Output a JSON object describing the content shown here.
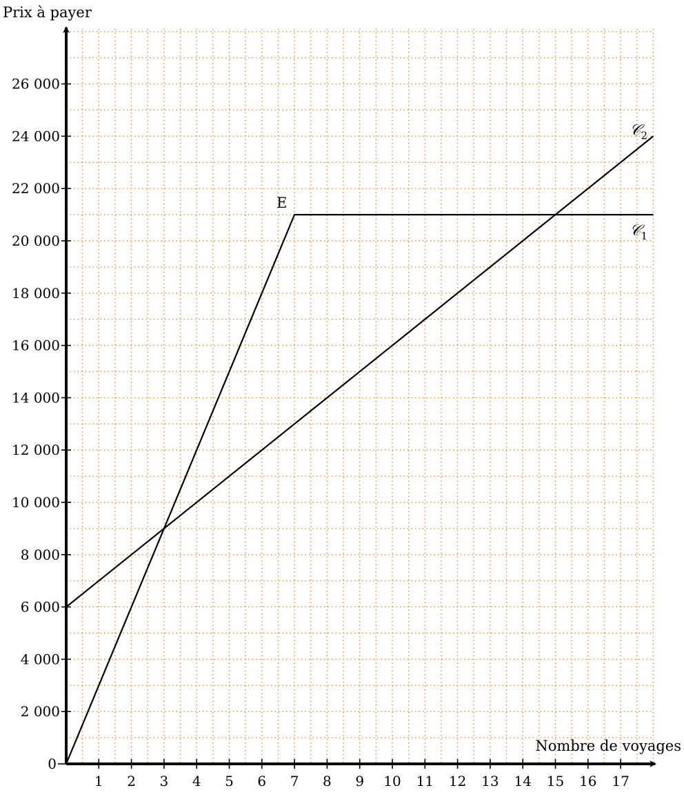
{
  "chart_data": {
    "type": "line",
    "xlabel": "Nombre de voyages",
    "ylabel": "Prix à payer",
    "xlim": [
      0,
      18
    ],
    "ylim": [
      0,
      28000
    ],
    "x_ticks": [
      1,
      2,
      3,
      4,
      5,
      6,
      7,
      8,
      9,
      10,
      11,
      12,
      13,
      14,
      15,
      16,
      17
    ],
    "x_tick_labels": [
      "1",
      "2",
      "3",
      "4",
      "5",
      "6",
      "7",
      "8",
      "9",
      "10",
      "11",
      "12",
      "13",
      "14",
      "15",
      "16",
      "17"
    ],
    "y_ticks": [
      0,
      2000,
      4000,
      6000,
      8000,
      10000,
      12000,
      14000,
      16000,
      18000,
      20000,
      22000,
      24000,
      26000
    ],
    "y_tick_labels": [
      "0",
      "2 000",
      "4 000",
      "6 000",
      "8 000",
      "10 000",
      "12 000",
      "14 000",
      "16 000",
      "18 000",
      "20 000",
      "22 000",
      "24 000",
      "26 000"
    ],
    "grid": true,
    "grid_color": "#f08a1c",
    "series": [
      {
        "label": "𝒞",
        "subscript": "1",
        "color": "#000000",
        "points": [
          [
            0,
            0
          ],
          [
            7,
            21000
          ],
          [
            18,
            21000
          ]
        ]
      },
      {
        "label": "𝒞",
        "subscript": "2",
        "color": "#000000",
        "points": [
          [
            0,
            6000
          ],
          [
            18,
            24000
          ]
        ]
      }
    ],
    "annotations": [
      {
        "text": "E",
        "x": 7,
        "y": 21000
      }
    ]
  }
}
